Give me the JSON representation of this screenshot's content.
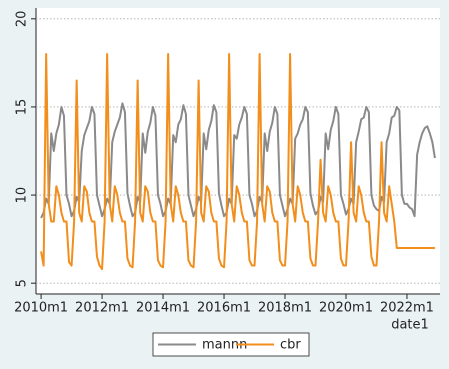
{
  "chart_data": {
    "type": "line",
    "x_label": "date1",
    "x": [
      600,
      601,
      602,
      603,
      604,
      605,
      606,
      607,
      608,
      609,
      610,
      611,
      612,
      613,
      614,
      615,
      616,
      617,
      618,
      619,
      620,
      621,
      622,
      623,
      624,
      625,
      626,
      627,
      628,
      629,
      630,
      631,
      632,
      633,
      634,
      635,
      636,
      637,
      638,
      639,
      640,
      641,
      642,
      643,
      644,
      645,
      646,
      647,
      648,
      649,
      650,
      651,
      652,
      653,
      654,
      655,
      656,
      657,
      658,
      659,
      660,
      661,
      662,
      663,
      664,
      665,
      666,
      667,
      668,
      669,
      670,
      671,
      672,
      673,
      674,
      675,
      676,
      677,
      678,
      679,
      680,
      681,
      682,
      683,
      684,
      685,
      686,
      687,
      688,
      689,
      690,
      691,
      692,
      693,
      694,
      695,
      696,
      697,
      698,
      699,
      700,
      701,
      702,
      703,
      704,
      705,
      706,
      707,
      708,
      709,
      710,
      711,
      712,
      713,
      714,
      715,
      716,
      717,
      718,
      719,
      720,
      721,
      722,
      723,
      724,
      725,
      726,
      727,
      728,
      729,
      730,
      731,
      732,
      733,
      734,
      735,
      736,
      737,
      738,
      739,
      740,
      741,
      742,
      743,
      744,
      745,
      746,
      747,
      748,
      749,
      750,
      751,
      752,
      753,
      754,
      755
    ],
    "series": [
      {
        "name": "mannn",
        "color": "#8a8a8a",
        "values": [
          8.7,
          9.0,
          9.8,
          9.5,
          13.5,
          12.5,
          13.5,
          14.0,
          15.0,
          14.5,
          10.0,
          9.5,
          8.8,
          9.1,
          9.9,
          9.6,
          12.5,
          13.4,
          13.8,
          14.2,
          15.0,
          14.6,
          10.0,
          9.4,
          8.8,
          9.2,
          9.8,
          9.5,
          13.0,
          13.6,
          14.0,
          14.4,
          15.2,
          14.7,
          10.1,
          9.4,
          8.8,
          9.0,
          9.9,
          9.6,
          13.5,
          12.4,
          13.6,
          14.1,
          15.0,
          14.5,
          10.0,
          9.5,
          8.8,
          9.1,
          9.8,
          9.5,
          13.4,
          13.0,
          14.0,
          14.3,
          15.1,
          14.6,
          10.0,
          9.4,
          8.8,
          9.2,
          9.9,
          9.6,
          13.5,
          12.6,
          13.7,
          14.2,
          15.1,
          14.7,
          10.1,
          9.4,
          8.8,
          9.0,
          9.8,
          9.5,
          13.4,
          13.2,
          14.0,
          14.4,
          15.0,
          14.6,
          10.0,
          9.5,
          8.8,
          9.1,
          9.9,
          9.6,
          13.5,
          12.5,
          13.6,
          14.1,
          15.0,
          14.6,
          10.0,
          9.4,
          8.8,
          9.2,
          9.8,
          9.5,
          13.2,
          13.5,
          14.0,
          14.3,
          15.0,
          14.7,
          10.1,
          9.4,
          8.9,
          9.1,
          9.9,
          9.6,
          13.5,
          12.6,
          13.7,
          14.2,
          15.0,
          14.6,
          10.0,
          9.5,
          8.9,
          9.2,
          9.8,
          9.5,
          13.0,
          13.6,
          14.3,
          14.4,
          15.0,
          14.7,
          10.0,
          9.4,
          9.2,
          9.1,
          9.9,
          9.6,
          13.0,
          13.5,
          14.4,
          14.5,
          15.0,
          14.8,
          10.0,
          9.5,
          9.5,
          9.3,
          9.2,
          8.8,
          12.3,
          13.0,
          13.5,
          13.8,
          13.9,
          13.5,
          13.0,
          12.1
        ]
      },
      {
        "name": "cbr",
        "color": "#f28e1c",
        "values": [
          6.8,
          6.0,
          18.0,
          9.5,
          8.5,
          8.5,
          10.5,
          10.0,
          9.0,
          8.5,
          8.5,
          6.2,
          6.0,
          8.5,
          16.5,
          9.0,
          8.5,
          10.5,
          10.2,
          9.0,
          8.5,
          8.5,
          6.5,
          6.0,
          5.8,
          8.5,
          18.0,
          9.5,
          8.5,
          10.5,
          10.0,
          9.0,
          8.5,
          8.5,
          6.4,
          6.0,
          5.9,
          8.5,
          16.5,
          9.0,
          8.5,
          10.5,
          10.2,
          9.0,
          8.5,
          8.5,
          6.3,
          6.0,
          5.9,
          8.5,
          18.0,
          9.5,
          8.5,
          10.5,
          10.0,
          9.0,
          8.5,
          8.5,
          6.3,
          6.0,
          5.9,
          8.5,
          16.5,
          9.0,
          8.5,
          10.5,
          10.2,
          9.0,
          8.5,
          8.5,
          6.4,
          6.0,
          5.9,
          8.5,
          18.0,
          9.5,
          8.5,
          10.5,
          10.0,
          9.0,
          8.5,
          8.5,
          6.3,
          6.0,
          6.0,
          8.5,
          18.0,
          9.5,
          8.5,
          10.5,
          10.2,
          9.0,
          8.5,
          8.5,
          6.3,
          6.0,
          6.0,
          8.5,
          18.0,
          9.5,
          8.5,
          10.5,
          10.0,
          9.0,
          8.5,
          8.5,
          6.4,
          6.0,
          6.0,
          8.5,
          12.0,
          9.0,
          8.5,
          10.5,
          10.0,
          9.0,
          8.5,
          8.5,
          6.4,
          6.0,
          6.0,
          8.5,
          13.0,
          9.0,
          8.5,
          10.5,
          10.0,
          9.0,
          8.5,
          8.5,
          6.5,
          6.0,
          6.0,
          8.5,
          13.0,
          9.0,
          8.5,
          10.5,
          9.5,
          8.5,
          7.0,
          7.0,
          7.0,
          7.0,
          7.0,
          7.0,
          7.0,
          7.0,
          7.0,
          7.0,
          7.0,
          7.0,
          7.0,
          7.0,
          7.0,
          7.0
        ]
      }
    ],
    "xlim": [
      598,
      757
    ],
    "xticks": [
      {
        "value": 600,
        "label": "2010m1"
      },
      {
        "value": 624,
        "label": "2012m1"
      },
      {
        "value": 648,
        "label": "2014m1"
      },
      {
        "value": 672,
        "label": "2016m1"
      },
      {
        "value": 696,
        "label": "2018m1"
      },
      {
        "value": 720,
        "label": "2020m1"
      },
      {
        "value": 744,
        "label": "2022m1"
      }
    ],
    "ylim": [
      4.5,
      20.5
    ],
    "yticks": [
      5,
      10,
      15,
      20
    ],
    "grid": true,
    "legend": "bottom"
  }
}
